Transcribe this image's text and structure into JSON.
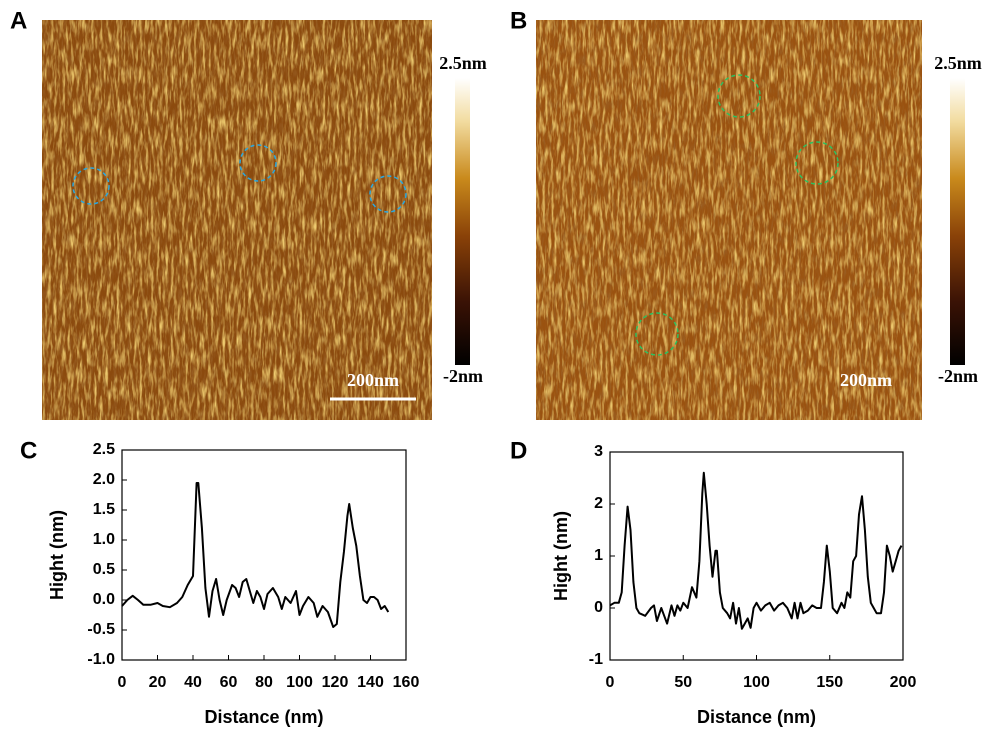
{
  "images": [
    {
      "label": "A",
      "colorbar": {
        "lim": [
          -2,
          2.5
        ],
        "ticks": [
          {
            "value": 2.5,
            "label": "2.5nm"
          },
          {
            "value": -2,
            "label": "-2nm"
          }
        ]
      },
      "scale_bar": "200nm"
    },
    {
      "label": "B",
      "colorbar": {
        "lim": [
          -2,
          2.5
        ],
        "ticks": [
          {
            "value": 2.5,
            "label": "2.5nm"
          },
          {
            "value": -2,
            "label": "-2nm"
          }
        ]
      },
      "scale_bar": "200nm"
    }
  ],
  "chart_data": [
    {
      "type": "line",
      "panel_label": "C",
      "xlabel": "Distance (nm)",
      "ylabel": "Hight (nm)",
      "color": "#000000",
      "x": [
        0,
        3,
        6,
        9,
        12,
        16,
        20,
        23,
        27,
        31,
        34,
        37,
        40,
        42,
        43,
        45,
        47,
        49,
        51,
        53,
        55,
        57,
        59,
        62,
        64,
        66,
        68,
        70,
        72,
        74,
        76,
        78,
        80,
        82,
        85,
        88,
        90,
        92,
        95,
        98,
        100,
        102,
        105,
        108,
        110,
        113,
        116,
        119,
        121,
        123,
        125,
        127,
        128,
        130,
        132,
        134,
        136,
        138,
        140,
        142,
        144,
        146,
        148,
        150
      ],
      "values": [
        -0.1,
        0.0,
        0.07,
        0.0,
        -0.08,
        -0.08,
        -0.05,
        -0.1,
        -0.12,
        -0.05,
        0.05,
        0.25,
        0.4,
        1.95,
        1.95,
        1.2,
        0.2,
        -0.28,
        0.15,
        0.35,
        0.0,
        -0.25,
        0.0,
        0.25,
        0.2,
        0.05,
        0.3,
        0.35,
        0.15,
        -0.05,
        0.15,
        0.05,
        -0.15,
        0.1,
        0.2,
        0.05,
        -0.15,
        0.05,
        -0.05,
        0.15,
        -0.25,
        -0.1,
        0.05,
        -0.05,
        -0.28,
        -0.1,
        -0.2,
        -0.45,
        -0.4,
        0.3,
        0.8,
        1.4,
        1.6,
        1.2,
        0.9,
        0.4,
        0.0,
        -0.05,
        0.05,
        0.05,
        0.0,
        -0.15,
        -0.1,
        -0.2
      ],
      "xlim": [
        0,
        160
      ],
      "xticks": [
        0,
        20,
        40,
        60,
        80,
        100,
        120,
        140,
        160
      ],
      "ylim": [
        -1,
        2.5
      ],
      "yticks": [
        {
          "value": -1,
          "label": "-1.0"
        },
        -0.5,
        {
          "value": 0,
          "label": "0.0"
        },
        0.5,
        {
          "value": 1,
          "label": "1.0"
        },
        1.5,
        {
          "value": 2,
          "label": "2.0"
        },
        2.5
      ]
    },
    {
      "type": "line",
      "panel_label": "D",
      "xlabel": "Distance (nm)",
      "ylabel": "Hight (nm)",
      "color": "#000000",
      "x": [
        0,
        3,
        6,
        8,
        10,
        12,
        14,
        16,
        18,
        20,
        24,
        28,
        30,
        32,
        35,
        37,
        39,
        42,
        44,
        46,
        48,
        50,
        53,
        56,
        59,
        61,
        63,
        64,
        66,
        68,
        70,
        72,
        73,
        75,
        77,
        80,
        82,
        84,
        86,
        88,
        90,
        92,
        94,
        96,
        98,
        100,
        103,
        106,
        109,
        112,
        115,
        118,
        121,
        124,
        126,
        128,
        130,
        132,
        135,
        138,
        141,
        144,
        146,
        148,
        150,
        152,
        155,
        158,
        160,
        162,
        164,
        166,
        168,
        170,
        172,
        174,
        176,
        178,
        180,
        182,
        185,
        187,
        189,
        191,
        193,
        195,
        197,
        199
      ],
      "values": [
        0.05,
        0.1,
        0.1,
        0.3,
        1.2,
        1.95,
        1.5,
        0.5,
        0.0,
        -0.1,
        -0.15,
        0.0,
        0.05,
        -0.25,
        0.0,
        -0.15,
        -0.3,
        0.05,
        -0.15,
        0.05,
        -0.05,
        0.1,
        0.0,
        0.4,
        0.2,
        0.9,
        2.2,
        2.6,
        2.0,
        1.2,
        0.6,
        1.1,
        1.1,
        0.3,
        0.0,
        -0.1,
        -0.2,
        0.1,
        -0.3,
        0.0,
        -0.4,
        -0.3,
        -0.2,
        -0.38,
        0.0,
        0.1,
        -0.05,
        0.05,
        0.1,
        -0.05,
        0.05,
        0.1,
        0.0,
        -0.2,
        0.1,
        -0.2,
        0.1,
        -0.1,
        -0.05,
        0.05,
        0.0,
        0.0,
        0.5,
        1.2,
        0.7,
        0.0,
        -0.1,
        0.1,
        0.0,
        0.3,
        0.2,
        0.9,
        1.0,
        1.8,
        2.15,
        1.5,
        0.6,
        0.1,
        0.0,
        -0.1,
        -0.1,
        0.3,
        1.2,
        1.0,
        0.7,
        0.9,
        1.1,
        1.2
      ],
      "xlim": [
        0,
        200
      ],
      "xticks": [
        0,
        50,
        100,
        150,
        200
      ],
      "ylim": [
        -1,
        3
      ],
      "yticks": [
        -1,
        0,
        1,
        2,
        3
      ]
    }
  ]
}
